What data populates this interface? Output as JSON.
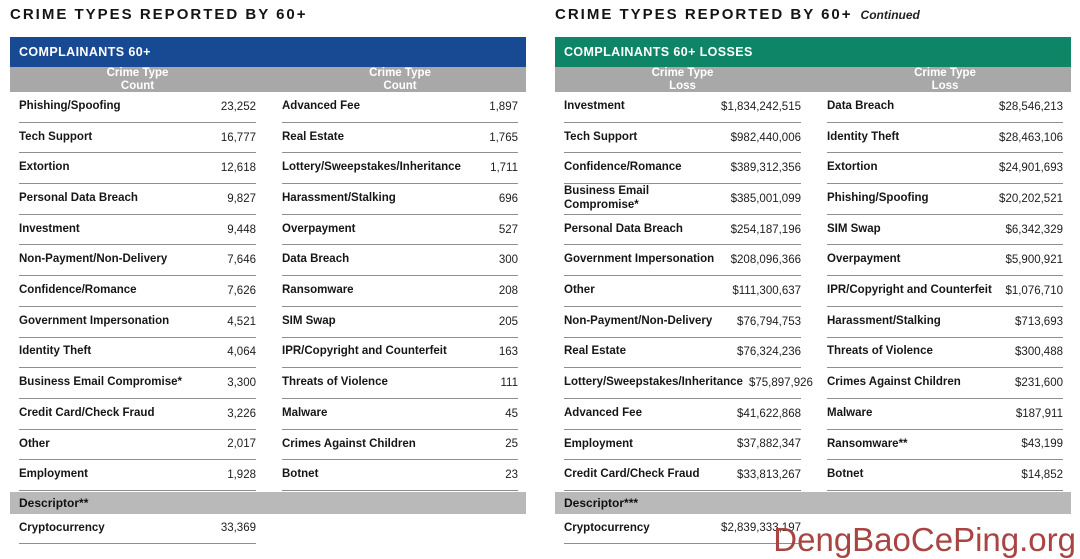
{
  "colors": {
    "reported_band": "#174a93",
    "losses_band": "#0e8566",
    "column_header_bg": "#a8a8a8",
    "descriptor_bg": "#b9b9b9",
    "watermark": "#a84442"
  },
  "watermark": {
    "text": "DengBaoCePing.org"
  },
  "reported": {
    "title": "CRIME TYPES REPORTED BY 60+",
    "band_label": "COMPLAINANTS 60+",
    "columns": [
      "Crime Type",
      "Count",
      "Crime Type",
      "Count"
    ],
    "rows_left": [
      {
        "label": "Phishing/Spoofing",
        "value": "23,252"
      },
      {
        "label": "Tech Support",
        "value": "16,777"
      },
      {
        "label": "Extortion",
        "value": "12,618"
      },
      {
        "label": "Personal Data Breach",
        "value": "9,827"
      },
      {
        "label": "Investment",
        "value": "9,448"
      },
      {
        "label": "Non-Payment/Non-Delivery",
        "value": "7,646"
      },
      {
        "label": "Confidence/Romance",
        "value": "7,626"
      },
      {
        "label": "Government Impersonation",
        "value": "4,521"
      },
      {
        "label": "Identity Theft",
        "value": "4,064"
      },
      {
        "label": "Business Email Compromise*",
        "value": "3,300"
      },
      {
        "label": "Credit Card/Check Fraud",
        "value": "3,226"
      },
      {
        "label": "Other",
        "value": "2,017"
      },
      {
        "label": "Employment",
        "value": "1,928"
      }
    ],
    "rows_right": [
      {
        "label": "Advanced Fee",
        "value": "1,897"
      },
      {
        "label": "Real Estate",
        "value": "1,765"
      },
      {
        "label": "Lottery/Sweepstakes/Inheritance",
        "value": "1,711"
      },
      {
        "label": "Harassment/Stalking",
        "value": "696"
      },
      {
        "label": "Overpayment",
        "value": "527"
      },
      {
        "label": "Data Breach",
        "value": "300"
      },
      {
        "label": "Ransomware",
        "value": "208"
      },
      {
        "label": "SIM Swap",
        "value": "205"
      },
      {
        "label": "IPR/Copyright and Counterfeit",
        "value": "163"
      },
      {
        "label": "Threats of Violence",
        "value": "111"
      },
      {
        "label": "Malware",
        "value": "45"
      },
      {
        "label": "Crimes Against Children",
        "value": "25"
      },
      {
        "label": "Botnet",
        "value": "23"
      }
    ],
    "descriptor_label": "Descriptor**",
    "descriptor_rows": [
      {
        "label": "Cryptocurrency",
        "value": "33,369"
      }
    ]
  },
  "losses": {
    "title": "CRIME TYPES REPORTED BY 60+",
    "title_suffix": "Continued",
    "band_label": "COMPLAINANTS 60+ LOSSES",
    "columns": [
      "Crime Type",
      "Loss",
      "Crime Type",
      "Loss"
    ],
    "rows_left": [
      {
        "label": "Investment",
        "value": "$1,834,242,515"
      },
      {
        "label": "Tech Support",
        "value": "$982,440,006"
      },
      {
        "label": "Confidence/Romance",
        "value": "$389,312,356"
      },
      {
        "label": "Business Email Compromise*",
        "value": "$385,001,099"
      },
      {
        "label": "Personal Data Breach",
        "value": "$254,187,196"
      },
      {
        "label": "Government Impersonation",
        "value": "$208,096,366"
      },
      {
        "label": "Other",
        "value": "$111,300,637"
      },
      {
        "label": "Non-Payment/Non-Delivery",
        "value": "$76,794,753"
      },
      {
        "label": "Real Estate",
        "value": "$76,324,236"
      },
      {
        "label": "Lottery/Sweepstakes/Inheritance",
        "value": "$75,897,926"
      },
      {
        "label": "Advanced Fee",
        "value": "$41,622,868"
      },
      {
        "label": "Employment",
        "value": "$37,882,347"
      },
      {
        "label": "Credit Card/Check Fraud",
        "value": "$33,813,267"
      }
    ],
    "rows_right": [
      {
        "label": "Data Breach",
        "value": "$28,546,213"
      },
      {
        "label": "Identity Theft",
        "value": "$28,463,106"
      },
      {
        "label": "Extortion",
        "value": "$24,901,693"
      },
      {
        "label": "Phishing/Spoofing",
        "value": "$20,202,521"
      },
      {
        "label": "SIM Swap",
        "value": "$6,342,329"
      },
      {
        "label": "Overpayment",
        "value": "$5,900,921"
      },
      {
        "label": "IPR/Copyright and Counterfeit",
        "value": "$1,076,710"
      },
      {
        "label": "Harassment/Stalking",
        "value": "$713,693"
      },
      {
        "label": "Threats of Violence",
        "value": "$300,488"
      },
      {
        "label": "Crimes Against Children",
        "value": "$231,600"
      },
      {
        "label": "Malware",
        "value": "$187,911"
      },
      {
        "label": "Ransomware**",
        "value": "$43,199"
      },
      {
        "label": "Botnet",
        "value": "$14,852"
      }
    ],
    "descriptor_label": "Descriptor***",
    "descriptor_rows": [
      {
        "label": "Cryptocurrency",
        "value": "$2,839,333,197"
      }
    ]
  }
}
